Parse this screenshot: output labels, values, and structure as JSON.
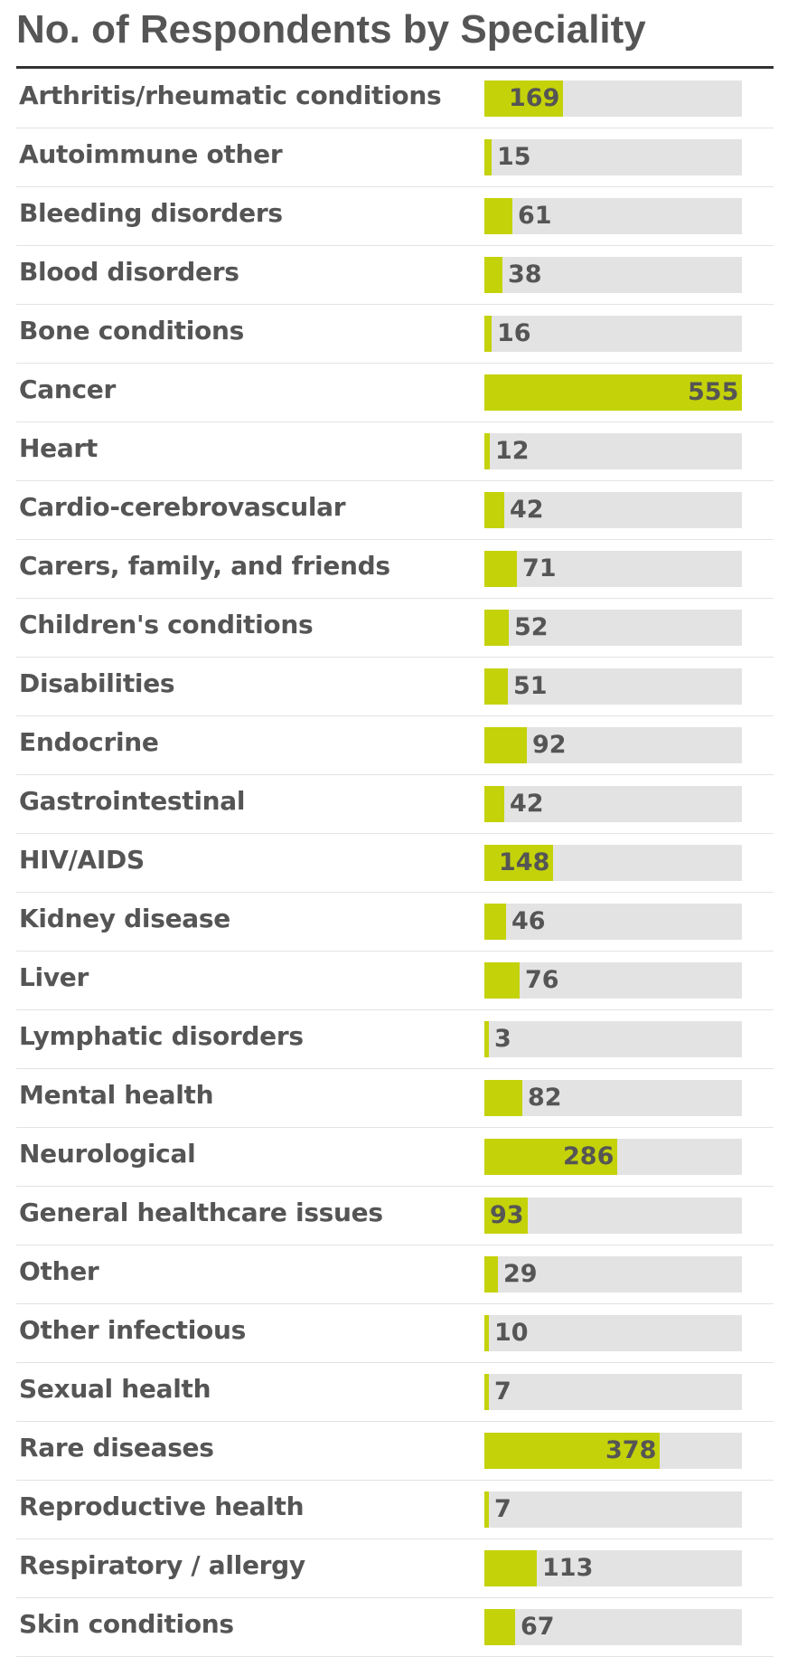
{
  "chart_data": {
    "type": "bar",
    "orientation": "horizontal",
    "title": "No. of Respondents by Speciality",
    "categories": [
      "Arthritis/rheumatic conditions",
      "Autoimmune other",
      "Bleeding disorders",
      "Blood disorders",
      "Bone conditions",
      "Cancer",
      "Heart",
      "Cardio-cerebrovascular",
      "Carers, family, and friends",
      "Children's conditions",
      "Disabilities",
      "Endocrine",
      "Gastrointestinal",
      "HIV/AIDS",
      "Kidney disease",
      "Liver",
      "Lymphatic disorders",
      "Mental health",
      "Neurological",
      "General healthcare issues",
      "Other",
      "Other infectious",
      "Sexual health",
      "Rare diseases",
      "Reproductive health",
      "Respiratory / allergy",
      "Skin conditions"
    ],
    "values": [
      169,
      15,
      61,
      38,
      16,
      555,
      12,
      42,
      71,
      52,
      51,
      92,
      42,
      148,
      46,
      76,
      3,
      82,
      286,
      93,
      29,
      10,
      7,
      378,
      7,
      113,
      67
    ],
    "xlim": [
      0,
      555
    ],
    "grid": false,
    "legend": "none",
    "colors": {
      "bar": "#c4d209",
      "track": "#e3e3e3",
      "text": "#555555",
      "rule": "#333333",
      "row_divider": "#e3e3e3"
    }
  }
}
